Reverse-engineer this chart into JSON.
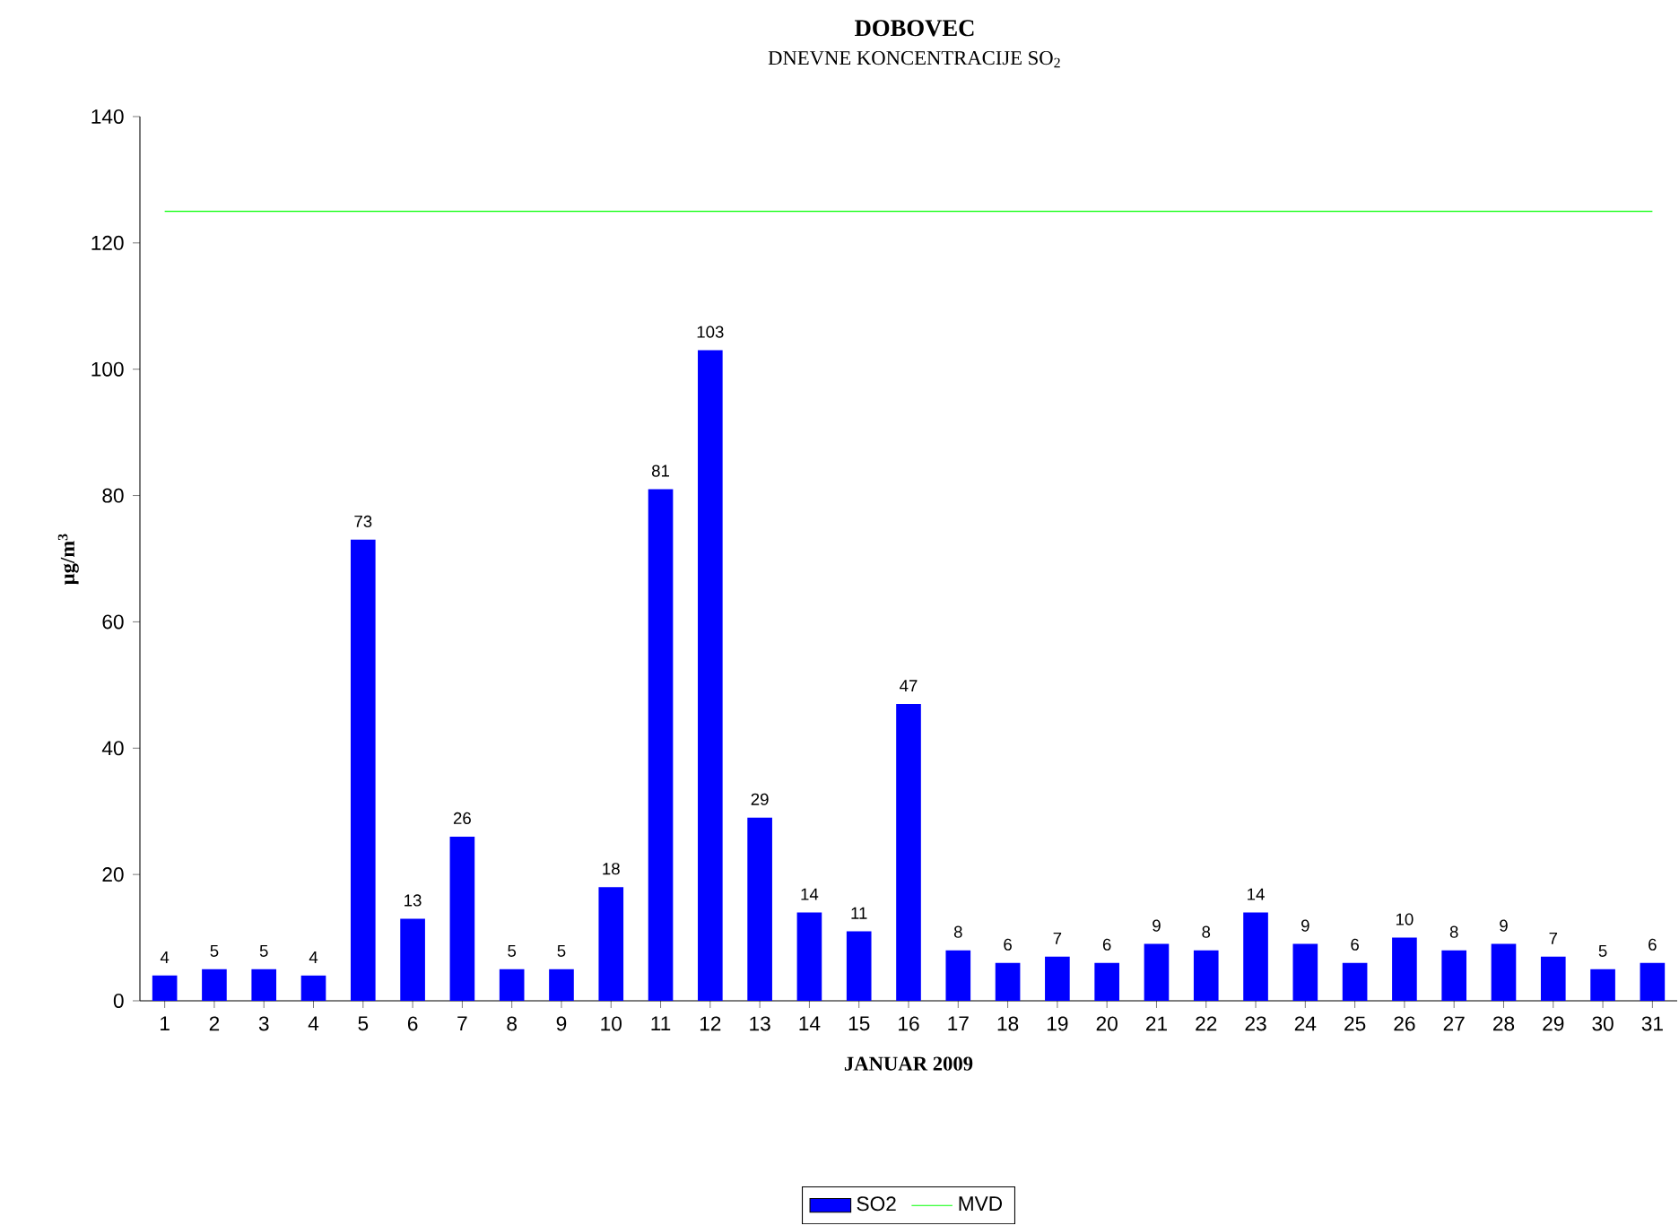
{
  "chart_data": {
    "type": "bar",
    "title": "DOBOVEC",
    "subtitle": "DNEVNE KONCENTRACIJE SO$_{2}$",
    "xlabel": "JANUAR 2009",
    "ylabel": "µg/m$^{3}$",
    "categories": [
      "1",
      "2",
      "3",
      "4",
      "5",
      "6",
      "7",
      "8",
      "9",
      "10",
      "11",
      "12",
      "13",
      "14",
      "15",
      "16",
      "17",
      "18",
      "19",
      "20",
      "21",
      "22",
      "23",
      "24",
      "25",
      "26",
      "27",
      "28",
      "29",
      "30",
      "31"
    ],
    "series": [
      {
        "name": "SO2",
        "color": "#0000ff",
        "values": [
          4,
          5,
          5,
          4,
          73,
          13,
          26,
          5,
          5,
          18,
          81,
          103,
          29,
          14,
          11,
          47,
          8,
          6,
          7,
          6,
          9,
          8,
          14,
          9,
          6,
          10,
          8,
          9,
          7,
          5,
          6
        ]
      }
    ],
    "ref_lines": [
      {
        "axis": "y",
        "value": 125,
        "label": "MVD",
        "color": "#00ff00",
        "line_style": "solid"
      }
    ],
    "ylim": [
      0,
      140
    ],
    "yticks": [
      0,
      20,
      40,
      60,
      80,
      100,
      120,
      140
    ],
    "data_labels": true,
    "grid": false,
    "legend": "bottom"
  }
}
